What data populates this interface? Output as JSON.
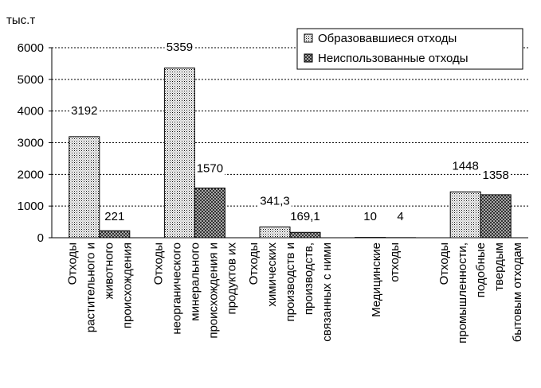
{
  "chart_data": {
    "type": "bar",
    "unit_label": "тыс.т",
    "categories": [
      [
        "Отходы",
        "растительного и",
        "животного",
        "происхождения"
      ],
      [
        "Отходы",
        "неорганического",
        "минерального",
        "происхождения  и",
        "продуктов их"
      ],
      [
        "Отходы",
        "химических",
        "производств и",
        "производств,",
        "связанных с ними"
      ],
      [
        "Медицинские",
        "отходы"
      ],
      [
        "Отходы",
        "промышленности,",
        "подобные",
        "твердым",
        "бытовым отходам"
      ]
    ],
    "series": [
      {
        "name": "Образовавшиеся отходы",
        "values": [
          3192,
          5359,
          341.3,
          10,
          1448
        ]
      },
      {
        "name": "Неиспользованные отходы",
        "values": [
          221,
          1570,
          169.1,
          4,
          1358
        ]
      }
    ],
    "value_labels": [
      [
        "3192",
        "5359",
        "341,3",
        "10",
        "1448"
      ],
      [
        "221",
        "1570",
        "169,1",
        "4",
        "1358"
      ]
    ],
    "yticks": [
      "0",
      "1000",
      "2000",
      "3000",
      "4000",
      "5000",
      "6000"
    ],
    "ylim": [
      0,
      6000
    ],
    "grid": true,
    "legend_position": "top-right",
    "colors": {
      "series1_fill": "#ffffff",
      "series2_fill": "#bfbfbf",
      "bar_stroke": "#000000"
    }
  }
}
